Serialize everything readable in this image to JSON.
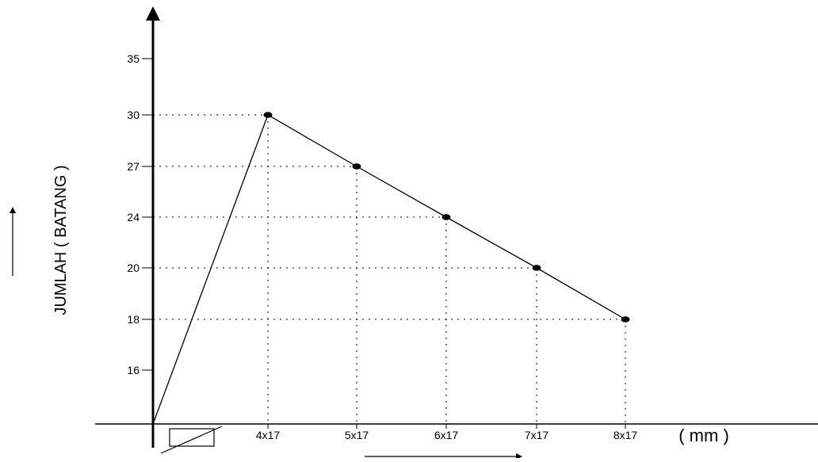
{
  "chart_data": {
    "type": "line",
    "title": "",
    "ylabel": "JUMLAH ( BATANG )",
    "xlabel": "",
    "x_unit": "( mm )",
    "categories": [
      "4x17",
      "5x17",
      "6x17",
      "7x17",
      "8x17"
    ],
    "values": [
      30,
      27,
      24,
      20,
      18
    ],
    "y_ticks": [
      16,
      18,
      20,
      24,
      27,
      30,
      35
    ],
    "origin_value": 14,
    "guides": "dotted",
    "grid": false,
    "legend": "none"
  }
}
